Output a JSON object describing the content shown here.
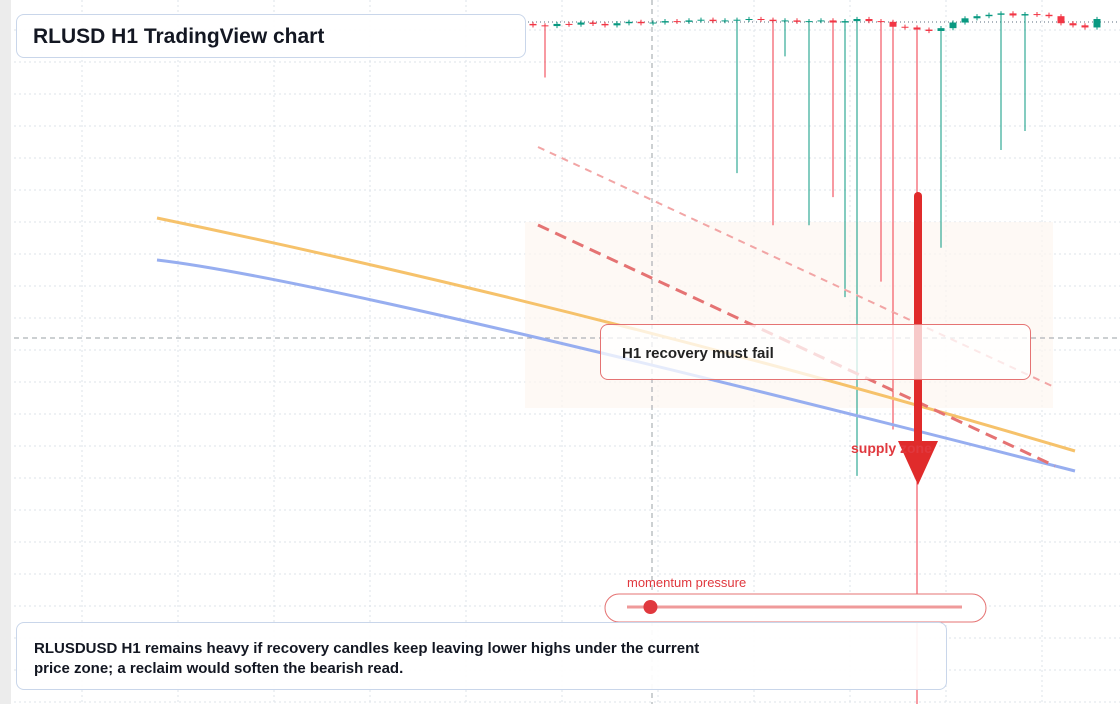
{
  "chart_data": {
    "type": "candlestick",
    "title": "RLUSD H1 TradingView chart",
    "ylim": [
      0,
      100
    ],
    "up_color": "#089981",
    "down_color": "#f23645",
    "open": [
      96.6,
      96.4,
      96.3,
      96.6,
      96.5,
      96.8,
      96.6,
      96.4,
      96.7,
      96.9,
      96.7,
      96.8,
      97.0,
      96.9,
      97.1,
      97.2,
      97.0,
      97.1,
      97.2,
      97.3,
      97.2,
      97.0,
      97.1,
      96.9,
      97.0,
      97.1,
      96.8,
      97.0,
      97.3,
      97.0,
      96.9,
      96.2,
      96.1,
      95.8,
      95.6,
      96.0,
      96.8,
      97.4,
      97.7,
      97.9,
      98.1,
      97.8,
      98.0,
      97.9,
      97.7,
      96.7,
      96.4,
      96.1
    ],
    "high": [
      96.9,
      96.7,
      96.9,
      96.9,
      97.1,
      97.1,
      96.9,
      97.0,
      97.2,
      97.2,
      97.1,
      97.3,
      97.3,
      97.4,
      97.5,
      97.5,
      97.4,
      97.5,
      97.6,
      97.6,
      97.5,
      97.4,
      97.4,
      97.3,
      97.4,
      97.4,
      97.3,
      97.6,
      97.6,
      97.3,
      97.2,
      96.5,
      96.4,
      96.1,
      96.3,
      97.1,
      97.7,
      98.0,
      98.2,
      98.4,
      98.4,
      98.3,
      98.3,
      98.2,
      98.0,
      97.0,
      96.7,
      97.6
    ],
    "low": [
      96.1,
      89,
      96.0,
      96.2,
      96.2,
      96.3,
      96.1,
      96.1,
      96.4,
      96.4,
      96.4,
      96.5,
      96.6,
      96.6,
      96.8,
      96.7,
      96.7,
      75.4,
      96.9,
      96.9,
      68,
      92,
      96.6,
      68,
      96.7,
      72,
      57.8,
      32.4,
      96.7,
      60,
      39,
      95.8,
      0,
      95.3,
      64.8,
      95.7,
      96.5,
      97.1,
      97.4,
      78.7,
      97.5,
      81.4,
      97.6,
      97.4,
      96.4,
      96.1,
      95.8,
      95.8
    ],
    "close": [
      96.4,
      96.3,
      96.6,
      96.5,
      96.8,
      96.6,
      96.4,
      96.7,
      96.9,
      96.7,
      96.8,
      97.0,
      96.9,
      97.1,
      97.2,
      97.0,
      97.1,
      97.2,
      97.3,
      97.2,
      97.0,
      97.1,
      96.9,
      97.0,
      97.1,
      96.8,
      97.0,
      97.3,
      97.0,
      96.9,
      96.2,
      96.1,
      95.8,
      95.6,
      96.0,
      96.8,
      97.4,
      97.7,
      97.9,
      98.1,
      97.8,
      98.0,
      97.9,
      97.7,
      96.7,
      96.4,
      96.1,
      97.3
    ],
    "annotations": {
      "callout": "H1 recovery must fail",
      "zone": "supply zone"
    },
    "momentum": {
      "label": "momentum pressure",
      "value": 7,
      "range": [
        0,
        100
      ]
    },
    "note": "RLUSDUSD H1 remains heavy if recovery candles keep leaving lower highs under the current price zone; a reclaim would soften the bearish read."
  }
}
